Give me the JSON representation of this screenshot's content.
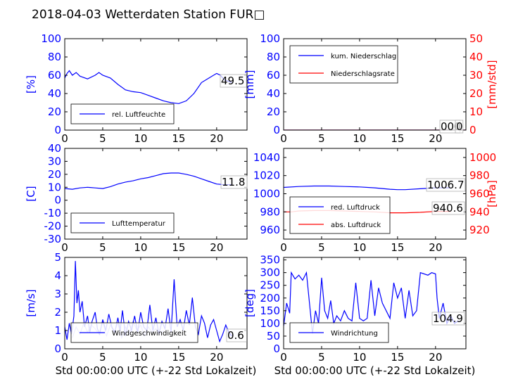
{
  "figure_title": "2018-04-03 Wetterdaten Station FUR□",
  "colors": {
    "primary": "#0000ff",
    "secondary": "#ff0000",
    "axis": "#000000"
  },
  "chart_data": [
    {
      "type": "line",
      "id": "humidity",
      "xlim": [
        0,
        24
      ],
      "xticks": [
        0,
        5,
        10,
        15,
        20
      ],
      "ylim": [
        0,
        100
      ],
      "yticks": [
        0,
        20,
        40,
        60,
        80,
        100
      ],
      "ylabel": "[%]",
      "xlabel": "",
      "legend_position": "lower-left",
      "current_value": "49.5",
      "series": [
        {
          "name": "rel. Luftfeuchte",
          "color": "#0000ff",
          "axis": "left",
          "x": [
            0,
            0.3,
            0.6,
            1,
            1.5,
            2,
            3,
            4,
            4.5,
            5,
            6,
            7,
            8,
            9,
            10,
            11,
            12,
            13,
            14,
            15,
            16,
            17,
            18,
            19,
            20,
            20.5,
            21,
            22
          ],
          "y": [
            57,
            62,
            65,
            60,
            63,
            59,
            56,
            60,
            63,
            60,
            57,
            50,
            44,
            42,
            41,
            38,
            35,
            32,
            30,
            29,
            32,
            40,
            52,
            57,
            62,
            60,
            55,
            52
          ]
        }
      ]
    },
    {
      "type": "line",
      "id": "precipitation",
      "xlim": [
        0,
        24
      ],
      "xticks": [
        0,
        5,
        10,
        15,
        20
      ],
      "ylim": [
        0,
        100
      ],
      "yticks": [
        0,
        20,
        40,
        60,
        80,
        100
      ],
      "ylim_right": [
        0,
        50
      ],
      "yticks_right": [
        0,
        10,
        20,
        30,
        40,
        50
      ],
      "ylabel": "[mm]",
      "ylabel_right": "[mm/std]",
      "xlabel": "",
      "legend_position": "upper-left",
      "current_value": "000",
      "current_value_extra": "0",
      "series": [
        {
          "name": "kum. Niederschlag",
          "color": "#0000ff",
          "axis": "left",
          "x": [
            0,
            24
          ],
          "y": [
            0,
            0
          ]
        },
        {
          "name": "Niederschlagsrate",
          "color": "#ff0000",
          "axis": "right",
          "x": [
            0,
            24
          ],
          "y": [
            0,
            0
          ]
        }
      ]
    },
    {
      "type": "line",
      "id": "temperature",
      "xlim": [
        0,
        24
      ],
      "xticks": [
        0,
        5,
        10,
        15,
        20
      ],
      "ylim": [
        -30,
        40
      ],
      "yticks": [
        -30,
        -20,
        -10,
        0,
        10,
        20,
        30,
        40
      ],
      "ylabel": "[C]",
      "xlabel": "",
      "legend_position": "lower-left",
      "current_value": "11.8",
      "series": [
        {
          "name": "Lufttemperatur",
          "color": "#0000ff",
          "axis": "left",
          "x": [
            0,
            1,
            2,
            3,
            4,
            5,
            6,
            7,
            8,
            9,
            10,
            11,
            12,
            13,
            14,
            15,
            16,
            17,
            18,
            19,
            20,
            21,
            22
          ],
          "y": [
            9,
            8.5,
            9.5,
            10,
            9.5,
            9,
            10.5,
            12.5,
            14,
            15,
            16.5,
            17.5,
            19,
            20.5,
            21,
            21,
            20,
            18.5,
            16.5,
            14.5,
            12.5,
            12,
            12
          ]
        }
      ]
    },
    {
      "type": "line",
      "id": "pressure",
      "xlim": [
        0,
        24
      ],
      "xticks": [
        0,
        5,
        10,
        15,
        20
      ],
      "ylim": [
        950,
        1050
      ],
      "yticks": [
        960,
        980,
        1000,
        1020,
        1040
      ],
      "ylim_right": [
        910,
        1010
      ],
      "yticks_right": [
        920,
        940,
        960,
        980,
        1000
      ],
      "ylabel": "",
      "ylabel_right": "[hPa]",
      "xlabel": "",
      "legend_position": "lower-left",
      "current_value": "1006.7",
      "current_value_2": "940.6",
      "series": [
        {
          "name": "red. Luftdruck",
          "color": "#0000ff",
          "axis": "left",
          "x": [
            0,
            2,
            4,
            6,
            8,
            10,
            12,
            14,
            15,
            16,
            18,
            20,
            22
          ],
          "y": [
            1007,
            1008,
            1008.5,
            1008.5,
            1008,
            1007.5,
            1006.5,
            1005,
            1004.5,
            1004.5,
            1005.5,
            1006.5,
            1006.5
          ]
        },
        {
          "name": "abs. Luftdruck",
          "color": "#ff0000",
          "axis": "right",
          "x": [
            0,
            1,
            2,
            4,
            6,
            8,
            10,
            12,
            14,
            16,
            18,
            20,
            22
          ],
          "y": [
            940,
            940,
            941,
            941.5,
            941.5,
            941,
            940.5,
            940,
            939,
            939,
            939.5,
            940.5,
            940.5
          ]
        }
      ]
    },
    {
      "type": "line",
      "id": "windspeed",
      "xlim": [
        0,
        24
      ],
      "xticks": [
        0,
        5,
        10,
        15,
        20
      ],
      "ylim": [
        0,
        5
      ],
      "yticks": [
        0,
        1,
        2,
        3,
        4,
        5
      ],
      "ylabel": "[m/s]",
      "xlabel": "Std 00:00:00 UTC (+-22 Std Lokalzeit)",
      "legend_position": "lower-center",
      "current_value": "0.6",
      "series": [
        {
          "name": "Windgeschwindigkeit",
          "color": "#0000ff",
          "axis": "left",
          "x": [
            0,
            0.3,
            0.6,
            0.9,
            1.2,
            1.4,
            1.6,
            1.8,
            2,
            2.3,
            2.6,
            3,
            3.3,
            3.6,
            4,
            4.3,
            4.6,
            5,
            5.4,
            5.8,
            6.2,
            6.6,
            7,
            7.3,
            7.6,
            8,
            8.4,
            8.8,
            9.2,
            9.6,
            10,
            10.4,
            10.8,
            11.2,
            11.6,
            12,
            12.4,
            12.8,
            13.2,
            13.6,
            14,
            14.4,
            14.8,
            15.2,
            15.6,
            16,
            16.4,
            16.8,
            17.2,
            17.6,
            18,
            18.4,
            18.8,
            19.2,
            19.6,
            20,
            20.4,
            20.8,
            21.2,
            21.6,
            22
          ],
          "y": [
            1.2,
            0.5,
            1.4,
            0.8,
            1.8,
            4.8,
            2.5,
            3.2,
            2.0,
            2.6,
            1.2,
            1.8,
            0.9,
            1.5,
            2.0,
            1.1,
            0.8,
            1.6,
            1.0,
            1.9,
            1.2,
            0.9,
            1.7,
            1.0,
            2.1,
            0.7,
            1.5,
            1.0,
            1.8,
            0.9,
            2.0,
            1.2,
            1.0,
            2.4,
            1.0,
            1.7,
            0.8,
            1.5,
            1.1,
            2.2,
            0.9,
            3.8,
            1.2,
            1.6,
            1.0,
            2.1,
            1.3,
            2.8,
            1.2,
            0.8,
            1.8,
            1.4,
            0.6,
            1.3,
            1.6,
            1.0,
            0.4,
            0.8,
            1.3,
            0.9,
            0.7
          ]
        }
      ],
      "secondary_trace": {
        "color": "#8080ff",
        "x": [
          1,
          1.5,
          2,
          2.5,
          3,
          3.5,
          4,
          4.5,
          5,
          5.5,
          6,
          6.5,
          7,
          7.5,
          8,
          8.5,
          9,
          9.5,
          10,
          10.5,
          11,
          11.5,
          12,
          12.5,
          13
        ],
        "y": [
          0.6,
          1.2,
          0.8,
          1.4,
          0.9,
          1.3,
          1.1,
          0.8,
          1.5,
          0.7,
          1.3,
          0.9,
          1.4,
          0.6,
          1.2,
          0.8,
          1.5,
          1.0,
          1.3,
          0.7,
          1.2,
          0.9,
          1.1,
          0.8,
          1.0
        ]
      }
    },
    {
      "type": "line",
      "id": "winddirection",
      "xlim": [
        0,
        24
      ],
      "xticks": [
        0,
        5,
        10,
        15,
        20
      ],
      "ylim": [
        0,
        360
      ],
      "yticks": [
        0,
        50,
        100,
        150,
        200,
        250,
        300,
        350
      ],
      "ylabel": "[deg]",
      "xlabel": "Std 00:00:00 UTC (+-22 Std Lokalzeit)",
      "legend_position": "lower-left",
      "current_value": "104.9",
      "series": [
        {
          "name": "Windrichtung",
          "color": "#0000ff",
          "axis": "left",
          "x": [
            0,
            0.4,
            0.8,
            1,
            1.5,
            2,
            2.5,
            3,
            3.5,
            3.8,
            4.2,
            4.6,
            5,
            5.4,
            5.8,
            6.2,
            6.6,
            7,
            7.5,
            8,
            8.5,
            9,
            9.5,
            10,
            10.5,
            11,
            11.5,
            12,
            12.5,
            13,
            13.5,
            14,
            14.5,
            15,
            15.5,
            16,
            16.5,
            17,
            17.5,
            18,
            18.5,
            19,
            19.5,
            20,
            20.2,
            20.5,
            21,
            21.5,
            22,
            22.5,
            23
          ],
          "y": [
            90,
            180,
            140,
            300,
            275,
            290,
            270,
            300,
            150,
            60,
            150,
            100,
            280,
            150,
            120,
            190,
            100,
            130,
            110,
            150,
            120,
            110,
            260,
            120,
            110,
            120,
            270,
            130,
            240,
            180,
            150,
            120,
            260,
            200,
            240,
            120,
            230,
            130,
            150,
            300,
            295,
            290,
            300,
            295,
            200,
            120,
            180,
            100,
            130,
            100,
            110
          ]
        }
      ]
    }
  ]
}
